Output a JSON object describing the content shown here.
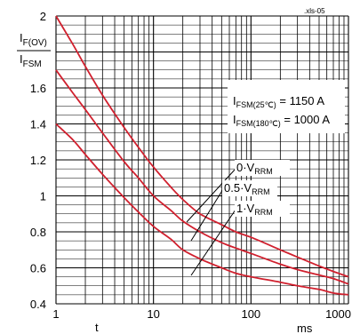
{
  "chart_data": {
    "type": "line",
    "ref_code": ".xls-05",
    "ylabel_top": "I",
    "ylabel_top_sub": "F(OV)",
    "ylabel_bottom": "I",
    "ylabel_bottom_sub": "FSM",
    "xlabel": "t",
    "x_unit": "ms",
    "x_scale": "log",
    "xlim": [
      1,
      1000
    ],
    "ylim": [
      0.4,
      2.0
    ],
    "grid": true,
    "x_ticks": [
      {
        "value": 1,
        "label": "1"
      },
      {
        "value": 10,
        "label": "10"
      },
      {
        "value": 100,
        "label": "100"
      },
      {
        "value": 1000,
        "label": "1000"
      }
    ],
    "y_ticks": [
      {
        "value": 0.4,
        "label": "0.4"
      },
      {
        "value": 0.6,
        "label": "0.6"
      },
      {
        "value": 0.8,
        "label": "0.8"
      },
      {
        "value": 1.0,
        "label": "1"
      },
      {
        "value": 1.2,
        "label": "1.2"
      },
      {
        "value": 1.4,
        "label": "1.4"
      },
      {
        "value": 1.6,
        "label": "1.6"
      },
      {
        "value": 2.0,
        "label": "2"
      }
    ],
    "annotation_lines": [
      {
        "main": "I",
        "sub": "FSM(25℃)",
        "value": " = 1150 A"
      },
      {
        "main": "I",
        "sub": "FSM(180℃)",
        "value": " = 1000 A"
      }
    ],
    "series_color": "#d0202e",
    "series": [
      {
        "label_prefix": "0·V",
        "label_sub": "RRM",
        "x": [
          1,
          1.5,
          2,
          3,
          5,
          7,
          10,
          15,
          20,
          30,
          50,
          70,
          100,
          200,
          300,
          500,
          700,
          1000
        ],
        "y": [
          2.0,
          1.84,
          1.72,
          1.56,
          1.38,
          1.27,
          1.16,
          1.05,
          0.98,
          0.9,
          0.84,
          0.8,
          0.77,
          0.7,
          0.66,
          0.61,
          0.58,
          0.55
        ]
      },
      {
        "label_prefix": "0.5·V",
        "label_sub": "RRM",
        "x": [
          1,
          1.5,
          2,
          3,
          5,
          7,
          10,
          15,
          20,
          30,
          50,
          70,
          100,
          200,
          300,
          500,
          700,
          1000
        ],
        "y": [
          1.7,
          1.57,
          1.48,
          1.35,
          1.19,
          1.1,
          1.0,
          0.92,
          0.86,
          0.8,
          0.74,
          0.71,
          0.68,
          0.62,
          0.59,
          0.56,
          0.54,
          0.51
        ]
      },
      {
        "label_prefix": "1·V",
        "label_sub": "RRM",
        "x": [
          1,
          1.5,
          2,
          3,
          5,
          7,
          10,
          15,
          20,
          30,
          50,
          70,
          100,
          200,
          300,
          500,
          700,
          1000
        ],
        "y": [
          1.4,
          1.31,
          1.23,
          1.12,
          0.99,
          0.91,
          0.83,
          0.76,
          0.7,
          0.65,
          0.6,
          0.57,
          0.55,
          0.52,
          0.5,
          0.48,
          0.46,
          0.45
        ]
      }
    ]
  }
}
